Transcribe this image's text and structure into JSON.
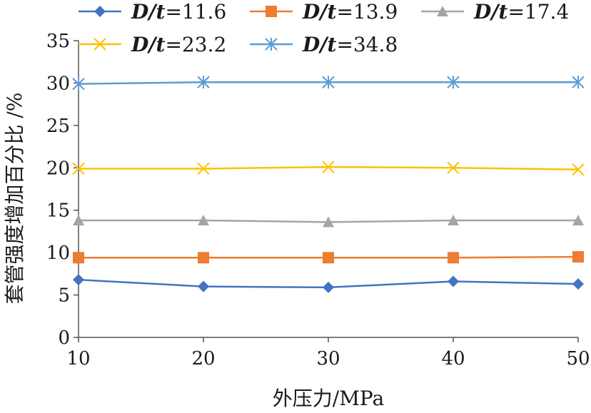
{
  "chart_data": {
    "type": "line",
    "x": [
      10,
      20,
      30,
      40,
      50
    ],
    "xlabel": "外压力/MPa",
    "ylabel": "套管强度增加百分比 /%",
    "xlim": [
      10,
      50
    ],
    "ylim": [
      0,
      35
    ],
    "yticks": [
      0,
      5,
      10,
      15,
      20,
      25,
      30,
      35
    ],
    "xticks": [
      10,
      20,
      30,
      40,
      50
    ],
    "grid": false,
    "legend_position": "top",
    "series": [
      {
        "name": "D/t=11.6",
        "legend_prefix": "D/t",
        "legend_value": "=11.6",
        "marker": "diamond",
        "color": "#4472C4",
        "values": [
          6.8,
          6.0,
          5.9,
          6.6,
          6.3
        ]
      },
      {
        "name": "D/t=13.9",
        "legend_prefix": "D/t",
        "legend_value": "=13.9",
        "marker": "square",
        "color": "#ED7D31",
        "values": [
          9.4,
          9.4,
          9.4,
          9.4,
          9.5
        ]
      },
      {
        "name": "D/t=17.4",
        "legend_prefix": "D/t",
        "legend_value": "=17.4",
        "marker": "triangle",
        "color": "#A5A5A5",
        "values": [
          13.8,
          13.8,
          13.6,
          13.8,
          13.8
        ]
      },
      {
        "name": "D/t=23.2",
        "legend_prefix": "D/t",
        "legend_value": "=23.2",
        "marker": "x",
        "color": "#FFC000",
        "values": [
          19.9,
          19.9,
          20.1,
          20.0,
          19.8
        ]
      },
      {
        "name": "D/t=34.8",
        "legend_prefix": "D/t",
        "legend_value": "=34.8",
        "marker": "star",
        "color": "#5B9BD5",
        "values": [
          29.9,
          30.1,
          30.1,
          30.1,
          30.1
        ]
      }
    ]
  }
}
